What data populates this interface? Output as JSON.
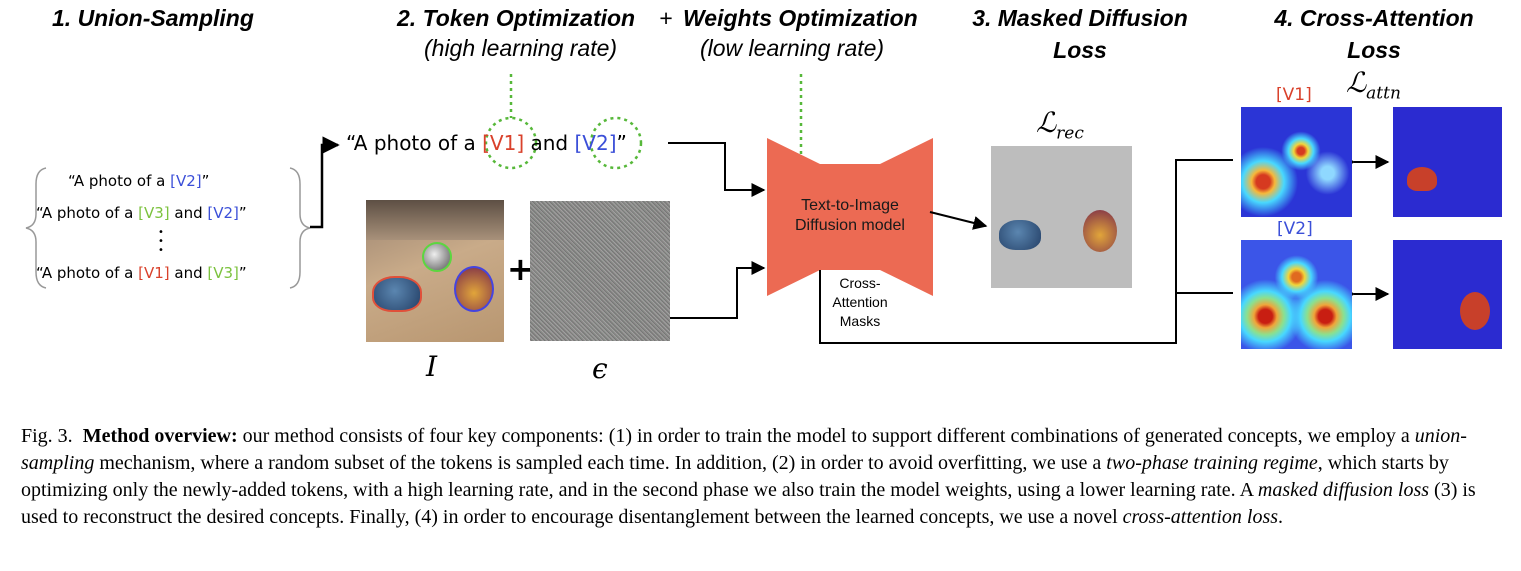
{
  "stages": {
    "s1": "1. Union-Sampling",
    "s2": "2. Token Optimization",
    "plus": "+",
    "s2b": "Weights Optimization",
    "s3_line1": "3. Masked Diffusion",
    "s3_line2": "Loss",
    "s4_line1": "4. Cross-Attention",
    "s4_line2": "Loss",
    "s2_sub": "(high learning rate)",
    "s2b_sub": "(low learning rate)"
  },
  "prompts": [
    {
      "pre": "“A photo of a ",
      "t1": "[V2]",
      "mid": "",
      "t2": "",
      "post": "”"
    },
    {
      "pre": "“A photo of a ",
      "t1": "[V3]",
      "mid": " and ",
      "t2": "[V2]",
      "post": "”"
    },
    {
      "pre": "“A photo of a ",
      "t1": "[V1]",
      "mid": " and ",
      "t2": "[V3]",
      "post": "”"
    }
  ],
  "dots": "•\n•\n•",
  "main_prompt": {
    "pre": "“A photo of a ",
    "t1": "[V1]",
    "mid": " and ",
    "t2": "[V2]",
    "post": "”"
  },
  "image_label": "I",
  "noise_label": "ϵ",
  "plus_sign": "+",
  "model": {
    "line1": "Text-to-Image",
    "line2": "Diffusion model"
  },
  "masks_label": {
    "line1": "Cross-",
    "line2": "Attention",
    "line3": "Masks"
  },
  "loss_rec": {
    "symbol": "ℒ",
    "sub": "rec"
  },
  "loss_attn": {
    "symbol": "ℒ",
    "sub": "attn"
  },
  "attn_tokens": {
    "v1": "[V1]",
    "v2": "[V2]"
  },
  "colors": {
    "token_v1": "#d9412b",
    "token_v2": "#3b4fd8",
    "token_v3": "#7cc23e",
    "model": "#ec6a53",
    "attn_bg": "#2a2ad0"
  },
  "caption": {
    "fig": "Fig. 3.",
    "bold": "Method overview:",
    "t1": " our method consists of four key components: (1) in order to train the model to support different combinations of generated concepts, we employ a ",
    "i1": "union-sampling",
    "t2": " mechanism, where a random subset of the tokens is sampled each time. In addition, (2) in order to avoid overfitting, we use a ",
    "i2": "two-phase training regime",
    "t3": ", which starts by optimizing only the newly-added tokens, with a high learning rate, and in the second phase we also train the model weights, using a lower learning rate. A ",
    "i3": "masked diffusion loss",
    "t4": " (3) is used to reconstruct the desired concepts. Finally, (4) in order to encourage disentanglement between the learned concepts, we use a novel ",
    "i4": "cross-attention loss",
    "t5": "."
  }
}
